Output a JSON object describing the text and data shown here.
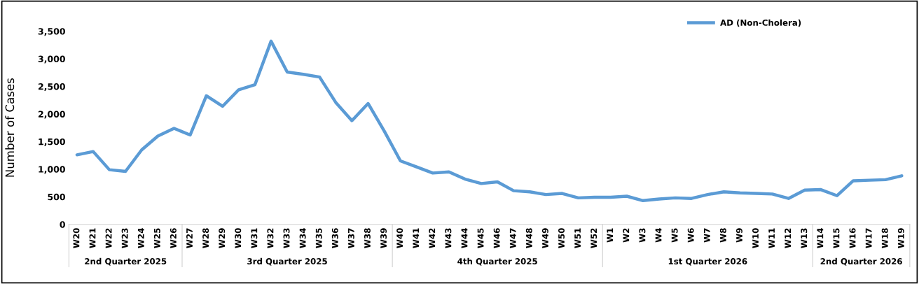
{
  "chart_data": {
    "type": "line",
    "ylabel": "Number of Cases",
    "categories": [
      "W20",
      "W21",
      "W22",
      "W23",
      "W24",
      "W25",
      "W26",
      "W27",
      "W28",
      "W29",
      "W30",
      "W31",
      "W32",
      "W33",
      "W34",
      "W35",
      "W36",
      "W37",
      "W38",
      "W39",
      "W40",
      "W41",
      "W42",
      "W43",
      "W44",
      "W45",
      "W46",
      "W47",
      "W48",
      "W49",
      "W50",
      "W51",
      "W52",
      "W1",
      "W2",
      "W3",
      "W4",
      "W5",
      "W6",
      "W7",
      "W8",
      "W9",
      "W10",
      "W11",
      "W12",
      "W13",
      "W14",
      "W15",
      "W16",
      "W17",
      "W18",
      "W19"
    ],
    "series": [
      {
        "name": "AD (Non-Cholera)",
        "color": "#5b9bd5",
        "values": [
          1260,
          1320,
          990,
          960,
          1350,
          1600,
          1740,
          1620,
          2330,
          2140,
          2440,
          2530,
          3320,
          2760,
          2720,
          2670,
          2210,
          1880,
          2190,
          1690,
          1150,
          1040,
          930,
          950,
          820,
          740,
          770,
          610,
          590,
          540,
          560,
          480,
          490,
          490,
          510,
          430,
          460,
          480,
          470,
          540,
          590,
          570,
          560,
          550,
          470,
          620,
          630,
          520,
          790,
          800,
          810,
          880
        ]
      }
    ],
    "ylim": [
      0,
      3500
    ],
    "yticks": [
      {
        "value": 0,
        "label": "0"
      },
      {
        "value": 500,
        "label": "500"
      },
      {
        "value": 1000,
        "label": "1,000"
      },
      {
        "value": 1500,
        "label": "1,500"
      },
      {
        "value": 2000,
        "label": "2,000"
      },
      {
        "value": 2500,
        "label": "2,500"
      },
      {
        "value": 3000,
        "label": "3,000"
      },
      {
        "value": 3500,
        "label": "3,500"
      }
    ],
    "annotations": [
      "2nd Quarter 2025",
      "3rd Quarter 2025",
      "4th Quarter 2025",
      "1st Quarter 2026",
      "2nd Quarter 2026"
    ],
    "grid": false,
    "legend": "top right",
    "marker": "none",
    "line_style": "solid"
  }
}
